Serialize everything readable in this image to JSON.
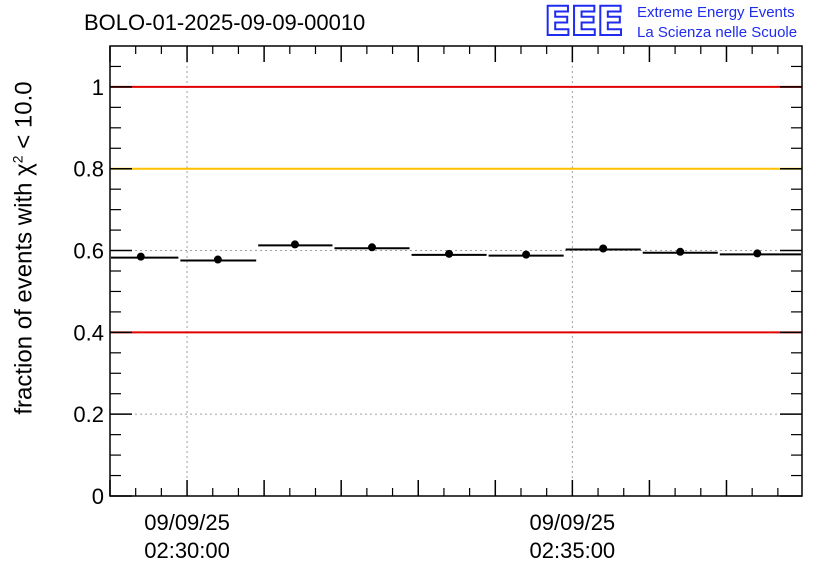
{
  "header": {
    "run_id": "BOLO-01-2025-09-09-00010"
  },
  "logo": {
    "mark": "EEE",
    "line1": "Extreme Energy Events",
    "line2": "La Scienza nelle Scuole",
    "color": "#1f2cf0"
  },
  "colors": {
    "limit_red": "#e00000",
    "limit_yellow": "#ffc000",
    "data": "#000000",
    "grid": "#a0a0a0"
  },
  "chart_data": {
    "type": "scatter",
    "title": "BOLO-01-2025-09-09-00010",
    "ylabel": {
      "prefix": "fraction of events with ",
      "symbol": "χ",
      "superscript": "2",
      "suffix": " < 10.0"
    },
    "xlabel": "",
    "ylim": [
      0,
      1.1
    ],
    "y_ticks": [
      0,
      0.2,
      0.4,
      0.6,
      0.8,
      1
    ],
    "y_tick_labels": [
      "0",
      "0.2",
      "0.4",
      "0.6",
      "0.8",
      "1"
    ],
    "x_unit": "minutes since 02:30:00",
    "xlim": [
      -1.0,
      7.98
    ],
    "x_tick_minutes": [
      0,
      5
    ],
    "x_tick_labels": [
      {
        "date": "09/09/25",
        "time": "02:30:00"
      },
      {
        "date": "09/09/25",
        "time": "02:35:00"
      }
    ],
    "grid": true,
    "reference_lines": [
      {
        "y": 1.0,
        "color": "red"
      },
      {
        "y": 0.8,
        "color": "yellow"
      },
      {
        "y": 0.4,
        "color": "red"
      }
    ],
    "series": [
      {
        "name": "fraction",
        "bin_edges": [
          -1.0,
          -0.1,
          0.91,
          1.9,
          2.9,
          3.9,
          4.9,
          5.9,
          6.9,
          7.98
        ],
        "x": [
          -0.6,
          0.4,
          1.4,
          2.4,
          3.4,
          4.4,
          5.4,
          6.4,
          7.4
        ],
        "values": [
          0.585,
          0.578,
          0.615,
          0.608,
          0.592,
          0.59,
          0.605,
          0.597,
          0.593
        ]
      }
    ]
  }
}
